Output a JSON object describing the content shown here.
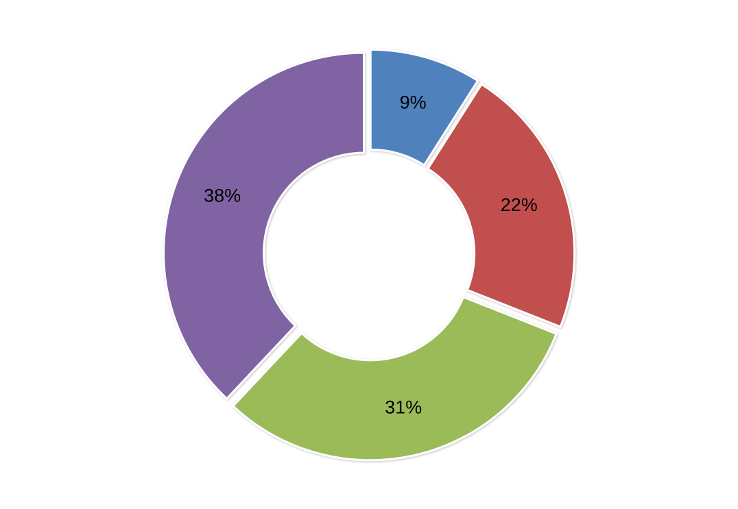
{
  "chart_data": {
    "type": "donut",
    "values": [
      9,
      22,
      31,
      38
    ],
    "value_labels": [
      "9%",
      "22%",
      "31%",
      "38%"
    ],
    "colors": [
      "#4f81bd",
      "#c0504d",
      "#9bbb59",
      "#8064a2"
    ]
  }
}
